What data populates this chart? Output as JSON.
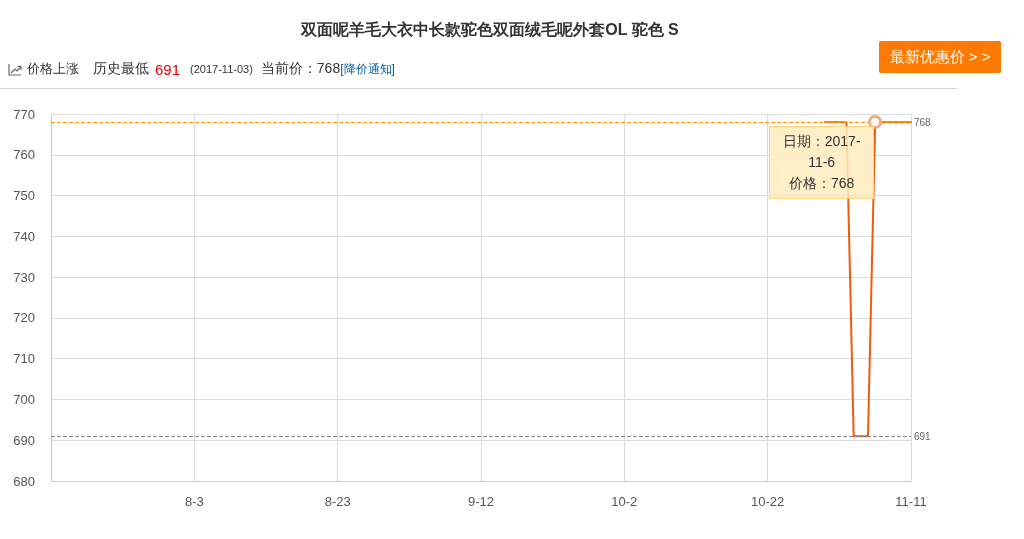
{
  "chart_data": {
    "type": "line",
    "title": "双面呢羊毛大衣中长款驼色双面绒毛呢外套OL 驼色 S",
    "annotations": [
      "价格上涨",
      "历史最低",
      "691",
      "(2017-11-03)",
      "当前价：768",
      "[降价通知]",
      "最新优惠价 > >",
      {
        "text": "日期：2017-11-6\n价格：768",
        "x": "2017-11-06",
        "y": 768
      }
    ],
    "x": [
      "2017-10-30",
      "2017-11-02",
      "2017-11-03",
      "2017-11-05",
      "2017-11-06",
      "2017-11-11"
    ],
    "series": [
      {
        "color": "#f05a0a",
        "values": [
          768,
          768,
          691,
          691,
          768,
          768
        ]
      }
    ],
    "xlim": [
      "2017-07-14",
      "2017-11-11"
    ],
    "xticks": [
      {
        "value": "2017-08-03",
        "label": "8-3"
      },
      {
        "value": "2017-08-23",
        "label": "8-23"
      },
      {
        "value": "2017-09-12",
        "label": "9-12"
      },
      {
        "value": "2017-10-02",
        "label": "10-2"
      },
      {
        "value": "2017-10-22",
        "label": "10-22"
      },
      {
        "value": "2017-11-11",
        "label": "11-11"
      }
    ],
    "ylim": [
      680,
      770
    ],
    "yticks": [
      680,
      690,
      700,
      710,
      720,
      730,
      740,
      750,
      760,
      770
    ],
    "ref_lines": [
      {
        "axis": "y",
        "value": 768,
        "label": "768",
        "color": "#ff9900",
        "line_style": "dashed"
      },
      {
        "axis": "y",
        "value": 691,
        "label": "691",
        "color": "#888888",
        "line_style": "dashed"
      }
    ],
    "grid": true
  }
}
